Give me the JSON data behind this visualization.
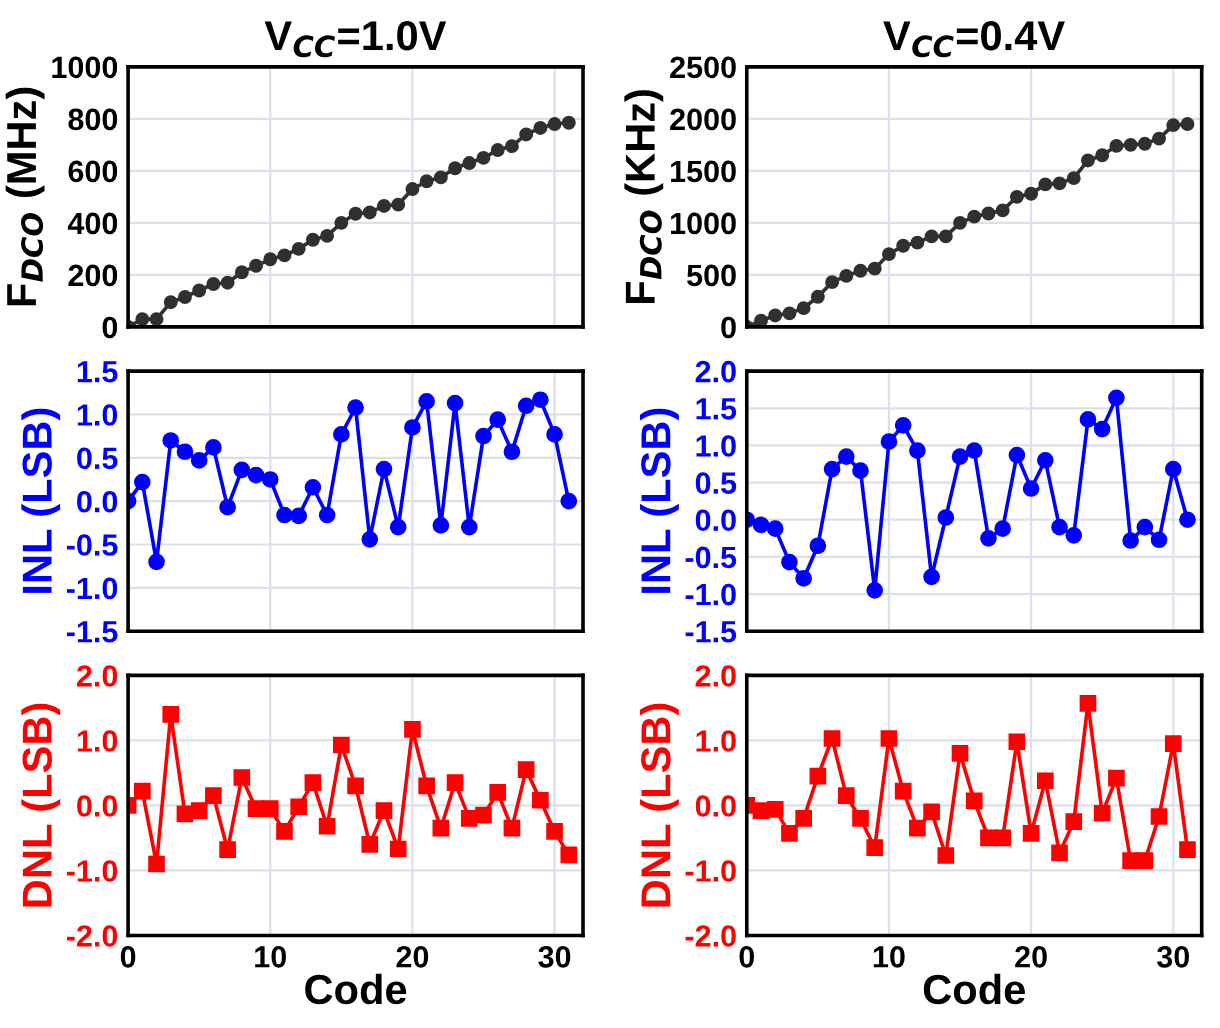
{
  "chart_data": [
    {
      "type": "line",
      "title": "V$_{CC}$=1.0V",
      "ylabel": "F$_{DCO}$ (MHz)",
      "x": [
        0,
        1,
        2,
        3,
        4,
        5,
        6,
        7,
        8,
        9,
        10,
        11,
        12,
        13,
        14,
        15,
        16,
        17,
        18,
        19,
        20,
        21,
        22,
        23,
        24,
        25,
        26,
        27,
        28,
        29,
        30,
        31
      ],
      "xlim": [
        0,
        32
      ],
      "xticks": [
        0,
        10,
        20,
        30
      ],
      "ylim": [
        0,
        1000
      ],
      "yticks": [
        0,
        200,
        400,
        600,
        800,
        1000
      ],
      "tick_labels": "y",
      "grid": true,
      "marker": "circle",
      "line_style": "solid",
      "series": [
        {
          "color": "#303030",
          "values": [
            0,
            30,
            30,
            95,
            115,
            140,
            165,
            170,
            210,
            235,
            260,
            275,
            300,
            335,
            350,
            400,
            435,
            440,
            465,
            470,
            530,
            560,
            575,
            610,
            630,
            650,
            680,
            695,
            740,
            765,
            780,
            785
          ]
        }
      ]
    },
    {
      "type": "line",
      "title": "V$_{CC}$=0.4V",
      "ylabel": "F$_{DCO}$ (KHz)",
      "x": [
        0,
        1,
        2,
        3,
        4,
        5,
        6,
        7,
        8,
        9,
        10,
        11,
        12,
        13,
        14,
        15,
        16,
        17,
        18,
        19,
        20,
        21,
        22,
        23,
        24,
        25,
        26,
        27,
        28,
        29,
        30,
        31
      ],
      "xlim": [
        0,
        32
      ],
      "xticks": [
        0,
        10,
        20,
        30
      ],
      "ylim": [
        0,
        2500
      ],
      "yticks": [
        0,
        500,
        1000,
        1500,
        2000,
        2500
      ],
      "tick_labels": "y",
      "grid": true,
      "marker": "circle",
      "line_style": "solid",
      "series": [
        {
          "color": "#303030",
          "values": [
            0,
            60,
            110,
            130,
            180,
            290,
            430,
            490,
            540,
            560,
            700,
            780,
            810,
            870,
            870,
            1000,
            1060,
            1090,
            1120,
            1250,
            1280,
            1370,
            1380,
            1430,
            1600,
            1650,
            1740,
            1750,
            1760,
            1810,
            1940,
            1950
          ]
        }
      ]
    },
    {
      "type": "line",
      "ylabel": "INL (LSB)",
      "x": [
        0,
        1,
        2,
        3,
        4,
        5,
        6,
        7,
        8,
        9,
        10,
        11,
        12,
        13,
        14,
        15,
        16,
        17,
        18,
        19,
        20,
        21,
        22,
        23,
        24,
        25,
        26,
        27,
        28,
        29,
        30,
        31
      ],
      "xlim": [
        0,
        32
      ],
      "xticks": [
        0,
        10,
        20,
        30
      ],
      "ylim": [
        -1.5,
        1.5
      ],
      "yticks": [
        {
          "value": -1.5,
          "label": "-1.5"
        },
        {
          "value": -1.0,
          "label": "-1.0"
        },
        {
          "value": -0.5,
          "label": "-0.5"
        },
        {
          "value": 0.0,
          "label": "0.0"
        },
        {
          "value": 0.5,
          "label": "0.5"
        },
        {
          "value": 1.0,
          "label": "1.0"
        },
        {
          "value": 1.5,
          "label": "1.5"
        }
      ],
      "tick_labels": "y",
      "grid": true,
      "marker": "circle",
      "line_style": "solid",
      "series": [
        {
          "color": "#0000ff",
          "values": [
            0,
            0.22,
            -0.7,
            0.7,
            0.57,
            0.47,
            0.62,
            -0.07,
            0.36,
            0.3,
            0.25,
            -0.16,
            -0.17,
            0.16,
            -0.16,
            0.77,
            1.08,
            -0.44,
            0.37,
            -0.3,
            0.85,
            1.15,
            -0.28,
            1.13,
            -0.3,
            0.75,
            0.94,
            0.57,
            1.1,
            1.17,
            0.77,
            0
          ]
        }
      ]
    },
    {
      "type": "line",
      "ylabel": "INL (LSB)",
      "x": [
        0,
        1,
        2,
        3,
        4,
        5,
        6,
        7,
        8,
        9,
        10,
        11,
        12,
        13,
        14,
        15,
        16,
        17,
        18,
        19,
        20,
        21,
        22,
        23,
        24,
        25,
        26,
        27,
        28,
        29,
        30,
        31
      ],
      "xlim": [
        0,
        32
      ],
      "xticks": [
        0,
        10,
        20,
        30
      ],
      "ylim": [
        -1.5,
        2.0
      ],
      "yticks": [
        {
          "value": -1.5,
          "label": "-1.5"
        },
        {
          "value": -1.0,
          "label": "-1.0"
        },
        {
          "value": -0.5,
          "label": "-0.5"
        },
        {
          "value": 0.0,
          "label": "0.0"
        },
        {
          "value": 0.5,
          "label": "0.5"
        },
        {
          "value": 1.0,
          "label": "1.0"
        },
        {
          "value": 1.5,
          "label": "1.5"
        },
        {
          "value": 2.0,
          "label": "2.0"
        }
      ],
      "tick_labels": "y",
      "grid": true,
      "marker": "circle",
      "line_style": "solid",
      "series": [
        {
          "color": "#0000ff",
          "values": [
            0,
            -0.07,
            -0.12,
            -0.57,
            -0.79,
            -0.35,
            0.68,
            0.85,
            0.66,
            -0.95,
            1.05,
            1.27,
            0.93,
            -0.77,
            0.03,
            0.85,
            0.93,
            -0.25,
            -0.12,
            0.87,
            0.42,
            0.8,
            -0.1,
            -0.21,
            1.35,
            1.22,
            1.64,
            -0.28,
            -0.1,
            -0.27,
            0.68,
            0
          ]
        }
      ]
    },
    {
      "type": "line",
      "ylabel": "DNL (LSB)",
      "xlabel": "Code",
      "x": [
        0,
        1,
        2,
        3,
        4,
        5,
        6,
        7,
        8,
        9,
        10,
        11,
        12,
        13,
        14,
        15,
        16,
        17,
        18,
        19,
        20,
        21,
        22,
        23,
        24,
        25,
        26,
        27,
        28,
        29,
        30,
        31
      ],
      "xlim": [
        0,
        32
      ],
      "xticks": [
        0,
        10,
        20,
        30
      ],
      "ylim": [
        -2.0,
        2.0
      ],
      "yticks": [
        {
          "value": -2.0,
          "label": "-2.0"
        },
        {
          "value": -1.0,
          "label": "-1.0"
        },
        {
          "value": 0.0,
          "label": "0.0"
        },
        {
          "value": 1.0,
          "label": "1.0"
        },
        {
          "value": 2.0,
          "label": "2.0"
        }
      ],
      "grid": true,
      "marker": "square",
      "line_style": "solid",
      "series": [
        {
          "color": "#ff0000",
          "values": [
            0,
            0.22,
            -0.9,
            1.4,
            -0.13,
            -0.08,
            0.15,
            -0.68,
            0.43,
            -0.05,
            -0.05,
            -0.4,
            -0.02,
            0.35,
            -0.32,
            0.93,
            0.3,
            -0.6,
            -0.08,
            -0.67,
            1.17,
            0.3,
            -0.35,
            0.35,
            -0.2,
            -0.15,
            0.2,
            -0.35,
            0.55,
            0.08,
            -0.4,
            -0.76
          ]
        }
      ]
    },
    {
      "type": "line",
      "ylabel": "DNL (LSB)",
      "xlabel": "Code",
      "x": [
        0,
        1,
        2,
        3,
        4,
        5,
        6,
        7,
        8,
        9,
        10,
        11,
        12,
        13,
        14,
        15,
        16,
        17,
        18,
        19,
        20,
        21,
        22,
        23,
        24,
        25,
        26,
        27,
        28,
        29,
        30,
        31
      ],
      "xlim": [
        0,
        32
      ],
      "xticks": [
        0,
        10,
        20,
        30
      ],
      "ylim": [
        -2.0,
        2.0
      ],
      "yticks": [
        {
          "value": -2.0,
          "label": "-2.0"
        },
        {
          "value": -1.0,
          "label": "-1.0"
        },
        {
          "value": 0.0,
          "label": "0.0"
        },
        {
          "value": 1.0,
          "label": "1.0"
        },
        {
          "value": 2.0,
          "label": "2.0"
        }
      ],
      "grid": true,
      "marker": "square",
      "line_style": "solid",
      "series": [
        {
          "color": "#ff0000",
          "values": [
            0,
            -0.08,
            -0.06,
            -0.43,
            -0.2,
            0.45,
            1.03,
            0.15,
            -0.2,
            -0.65,
            1.03,
            0.22,
            -0.35,
            -0.1,
            -0.77,
            0.8,
            0.07,
            -0.5,
            -0.5,
            0.98,
            -0.43,
            0.38,
            -0.73,
            -0.25,
            1.57,
            -0.12,
            0.42,
            -0.85,
            -0.85,
            -0.17,
            0.95,
            -0.68
          ]
        }
      ]
    }
  ]
}
